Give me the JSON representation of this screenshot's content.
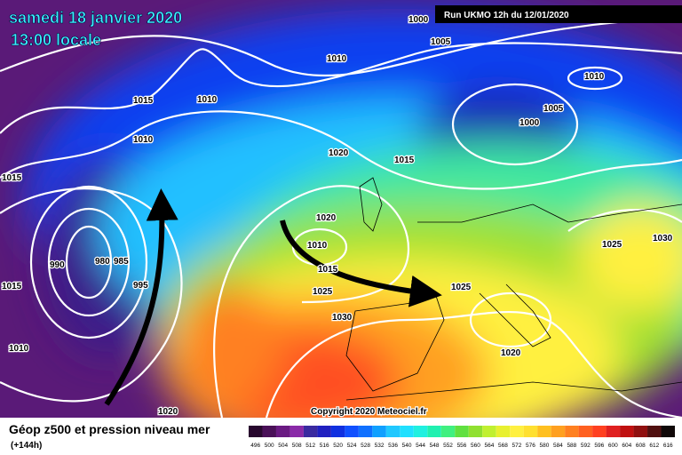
{
  "header": {
    "date": "samedi 18 janvier 2020",
    "time": "13:00 locale",
    "run": "Run UKMO 12h du 12/01/2020"
  },
  "isobar_labels": [
    "1000",
    "1005",
    "1010",
    "1010",
    "1005",
    "1000",
    "1015",
    "1010",
    "1010",
    "1020",
    "1015",
    "1015",
    "1020",
    "1010",
    "1015",
    "1025",
    "1025",
    "1025",
    "1030",
    "990",
    "980",
    "985",
    "995",
    "1015",
    "1030",
    "1010",
    "1020",
    "1020"
  ],
  "copyright": "Copyright 2020 Meteociel.fr",
  "legend": {
    "title": "Géop z500 et pression niveau mer",
    "lead": "(+144h)",
    "scale": [
      496,
      500,
      504,
      508,
      512,
      516,
      520,
      524,
      528,
      532,
      536,
      540,
      544,
      548,
      552,
      556,
      560,
      564,
      568,
      572,
      576,
      580,
      584,
      588,
      592,
      596,
      600,
      604,
      608,
      612,
      616
    ],
    "colors": [
      "#28082e",
      "#4a1058",
      "#6a1a82",
      "#8a2aa8",
      "#3a2aa0",
      "#2020c0",
      "#1030e0",
      "#1050ff",
      "#1070ff",
      "#10a0ff",
      "#20c8ff",
      "#20e0ff",
      "#20f0e0",
      "#20f0b0",
      "#40f080",
      "#60e040",
      "#90e030",
      "#c0f030",
      "#e8f030",
      "#fff040",
      "#ffe030",
      "#ffc020",
      "#ffa020",
      "#ff8020",
      "#ff6020",
      "#ff4020",
      "#e02020",
      "#c01010",
      "#901010",
      "#501010",
      "#100808"
    ]
  }
}
